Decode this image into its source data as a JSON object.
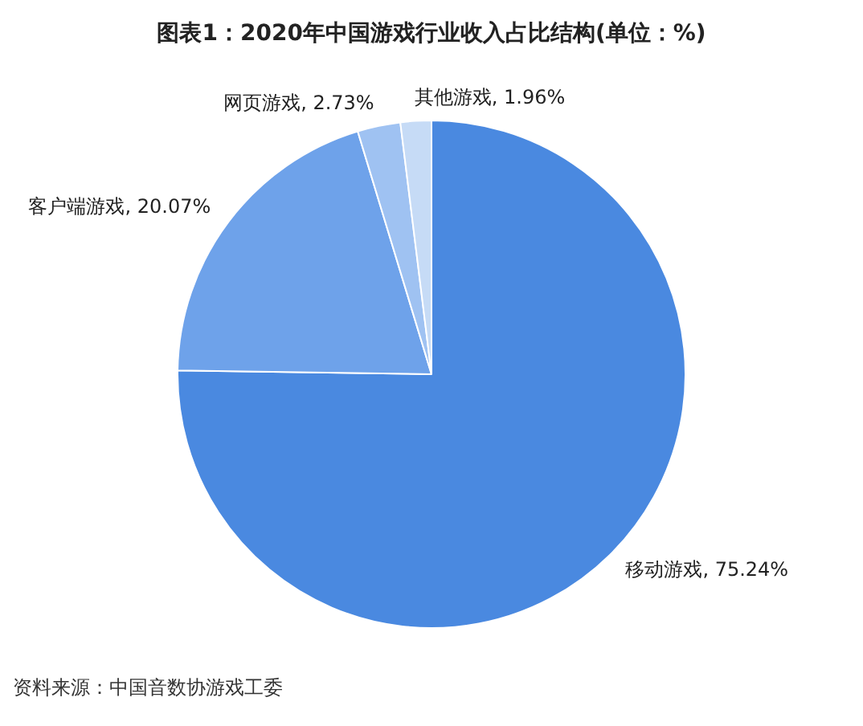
{
  "chart_data": {
    "type": "pie",
    "title": "图表1：2020年中国游戏行业收入占比结构(单位：%)",
    "categories": [
      "移动游戏",
      "客户端游戏",
      "网页游戏",
      "其他游戏"
    ],
    "values": [
      75.24,
      20.07,
      2.73,
      1.96
    ],
    "value_labels": [
      "75.24%",
      "20.07%",
      "2.73%",
      "1.96%"
    ],
    "colors": [
      "#4a89e0",
      "#6ea2ea",
      "#9fc2f2",
      "#c6dbf6"
    ],
    "legend": false,
    "annotations": [
      "资料来源：中国音数协游戏工委"
    ]
  }
}
